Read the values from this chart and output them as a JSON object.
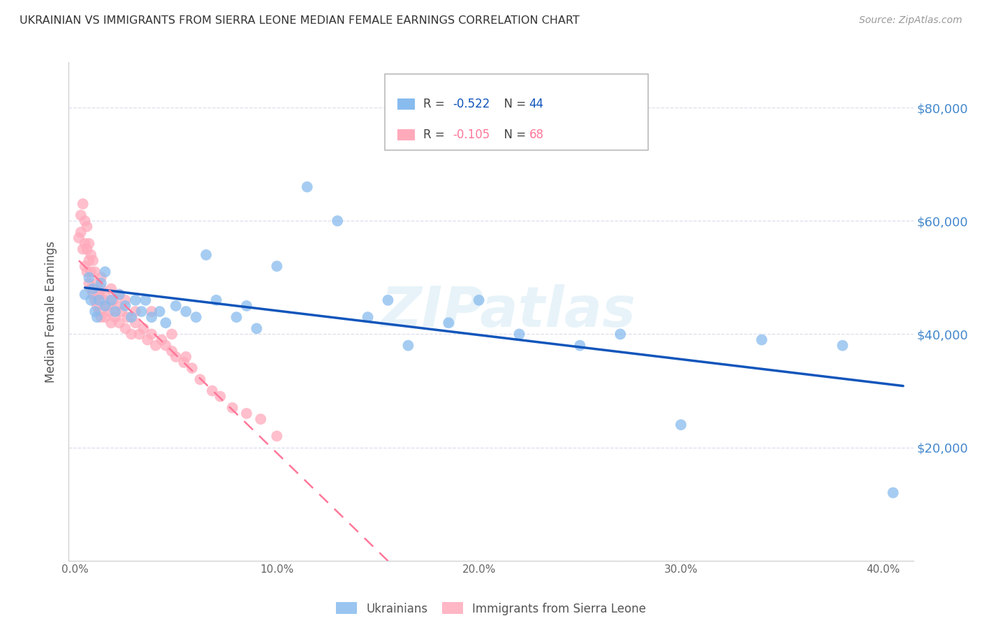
{
  "title": "UKRAINIAN VS IMMIGRANTS FROM SIERRA LEONE MEDIAN FEMALE EARNINGS CORRELATION CHART",
  "source": "Source: ZipAtlas.com",
  "ylabel": "Median Female Earnings",
  "xlabel_ticks": [
    "0.0%",
    "",
    "",
    "",
    "",
    "10.0%",
    "",
    "",
    "",
    "",
    "20.0%",
    "",
    "",
    "",
    "",
    "30.0%",
    "",
    "",
    "",
    "",
    "40.0%"
  ],
  "xlabel_vals": [
    0.0,
    0.02,
    0.04,
    0.06,
    0.08,
    0.1,
    0.12,
    0.14,
    0.16,
    0.18,
    0.2,
    0.22,
    0.24,
    0.26,
    0.28,
    0.3,
    0.32,
    0.34,
    0.36,
    0.38,
    0.4
  ],
  "xlabel_major_ticks": [
    0.0,
    0.1,
    0.2,
    0.3,
    0.4
  ],
  "xlabel_major_labels": [
    "0.0%",
    "10.0%",
    "20.0%",
    "30.0%",
    "40.0%"
  ],
  "ylabel_ticks": [
    0,
    20000,
    40000,
    60000,
    80000
  ],
  "ylabel_labels": [
    "",
    "$20,000",
    "$40,000",
    "$60,000",
    "$80,000"
  ],
  "ylim": [
    0,
    88000
  ],
  "xlim": [
    -0.003,
    0.415
  ],
  "watermark": "ZIPatlas",
  "r_ukrainian": -0.522,
  "n_ukrainian": 44,
  "r_sierra": -0.105,
  "n_sierra": 68,
  "blue_color": "#88BBEE",
  "pink_color": "#FFAABB",
  "blue_line_color": "#1155BB",
  "pink_line_color": "#FF7799",
  "right_axis_color": "#4488CC",
  "background_color": "#FFFFFF",
  "grid_color": "#DDDDEE",
  "title_color": "#333333",
  "ukrainians_x": [
    0.005,
    0.007,
    0.008,
    0.009,
    0.01,
    0.011,
    0.012,
    0.013,
    0.015,
    0.015,
    0.018,
    0.02,
    0.022,
    0.025,
    0.028,
    0.03,
    0.033,
    0.035,
    0.038,
    0.042,
    0.045,
    0.05,
    0.055,
    0.06,
    0.065,
    0.07,
    0.08,
    0.085,
    0.09,
    0.1,
    0.115,
    0.13,
    0.145,
    0.155,
    0.165,
    0.185,
    0.2,
    0.22,
    0.25,
    0.27,
    0.3,
    0.34,
    0.38,
    0.405
  ],
  "ukrainians_y": [
    47000,
    50000,
    46000,
    48000,
    44000,
    43000,
    46000,
    49000,
    45000,
    51000,
    46000,
    44000,
    47000,
    45000,
    43000,
    46000,
    44000,
    46000,
    43000,
    44000,
    42000,
    45000,
    44000,
    43000,
    54000,
    46000,
    43000,
    45000,
    41000,
    52000,
    66000,
    60000,
    43000,
    46000,
    38000,
    42000,
    46000,
    40000,
    38000,
    40000,
    24000,
    39000,
    38000,
    12000
  ],
  "sierra_x": [
    0.002,
    0.003,
    0.003,
    0.004,
    0.004,
    0.005,
    0.005,
    0.005,
    0.006,
    0.006,
    0.006,
    0.007,
    0.007,
    0.007,
    0.008,
    0.008,
    0.008,
    0.009,
    0.009,
    0.01,
    0.01,
    0.011,
    0.011,
    0.012,
    0.012,
    0.013,
    0.013,
    0.014,
    0.015,
    0.015,
    0.016,
    0.017,
    0.018,
    0.019,
    0.02,
    0.021,
    0.022,
    0.023,
    0.025,
    0.026,
    0.028,
    0.03,
    0.032,
    0.034,
    0.036,
    0.038,
    0.04,
    0.043,
    0.045,
    0.048,
    0.05,
    0.054,
    0.058,
    0.062,
    0.068,
    0.072,
    0.078,
    0.085,
    0.092,
    0.1,
    0.055,
    0.048,
    0.038,
    0.03,
    0.025,
    0.022,
    0.018,
    0.013
  ],
  "sierra_y": [
    57000,
    61000,
    58000,
    63000,
    55000,
    60000,
    56000,
    52000,
    59000,
    55000,
    51000,
    56000,
    53000,
    49000,
    54000,
    51000,
    48000,
    53000,
    47000,
    51000,
    46000,
    49000,
    45000,
    47000,
    44000,
    48000,
    43000,
    46000,
    47000,
    43000,
    45000,
    44000,
    42000,
    46000,
    43000,
    45000,
    42000,
    44000,
    41000,
    43000,
    40000,
    42000,
    40000,
    41000,
    39000,
    40000,
    38000,
    39000,
    38000,
    37000,
    36000,
    35000,
    34000,
    32000,
    30000,
    29000,
    27000,
    26000,
    25000,
    22000,
    36000,
    40000,
    44000,
    44000,
    46000,
    47000,
    48000,
    50000
  ]
}
